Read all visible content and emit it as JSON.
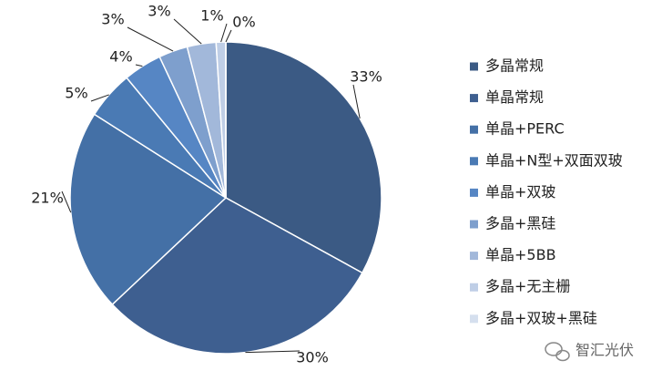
{
  "chart_data": {
    "type": "pie",
    "categories": [
      "多晶常规",
      "单晶常规",
      "单晶+PERC",
      "单晶+N型+双面双玻",
      "单晶+双玻",
      "多晶+黑硅",
      "单晶+5BB",
      "多晶+无主栅",
      "多晶+双玻+黑硅"
    ],
    "values": [
      33,
      30,
      21,
      5,
      4,
      3,
      3,
      1,
      0
    ],
    "value_labels": [
      "33%",
      "30%",
      "21%",
      "5%",
      "4%",
      "3%",
      "3%",
      "1%",
      "0%"
    ],
    "colors": [
      "#3b5a84",
      "#3e5f90",
      "#4470a6",
      "#4a7ab4",
      "#5686c4",
      "#7e9fcd",
      "#a2b8da",
      "#bfcee6",
      "#d5dfee"
    ],
    "watermark": "智汇光伏"
  }
}
